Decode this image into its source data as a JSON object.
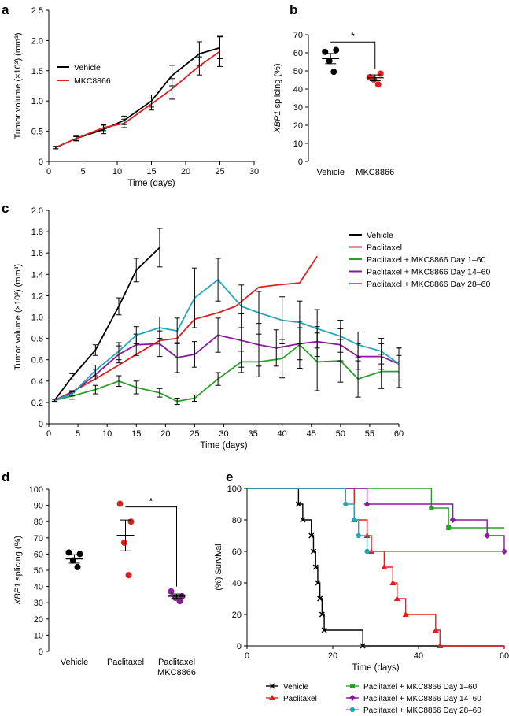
{
  "figure": {
    "panel_letters": [
      "a",
      "b",
      "c",
      "d",
      "e"
    ]
  },
  "chart_data": [
    {
      "panel": "a",
      "type": "line",
      "xlabel": "Time (days)",
      "ylabel": "Tumor volume (×10³) (mm³)",
      "xlim": [
        0,
        30
      ],
      "ylim": [
        0,
        2.5
      ],
      "xticks": [
        "0",
        "5",
        "10",
        "15",
        "20",
        "25",
        "30"
      ],
      "yticks": [
        "0",
        "0.5",
        "1.0",
        "1.5",
        "2.0",
        "2.5"
      ],
      "legend": [
        "Vehicle",
        "MKC8866"
      ],
      "series": [
        {
          "name": "Vehicle",
          "color": "#000000",
          "x": [
            1,
            4,
            8,
            11,
            15,
            18,
            22,
            25
          ],
          "y": [
            0.23,
            0.38,
            0.53,
            0.68,
            1.0,
            1.42,
            1.78,
            1.88
          ],
          "err": [
            0.02,
            0.04,
            0.07,
            0.07,
            0.1,
            0.17,
            0.2,
            0.18
          ]
        },
        {
          "name": "MKC8866",
          "color": "#e02020",
          "x": [
            1,
            4,
            8,
            11,
            15,
            18,
            22,
            25
          ],
          "y": [
            0.23,
            0.38,
            0.56,
            0.63,
            0.95,
            1.2,
            1.58,
            1.82
          ],
          "err": [
            0.02,
            0.03,
            0.05,
            0.07,
            0.1,
            0.17,
            0.15,
            0.25
          ]
        }
      ]
    },
    {
      "panel": "b",
      "type": "scatter",
      "ylabel": "XBP1 splicing (%)",
      "ylim": [
        0,
        70
      ],
      "yticks": [
        "0",
        "10",
        "20",
        "30",
        "40",
        "50",
        "60",
        "70"
      ],
      "categories": [
        "Vehicle",
        "MKC8866"
      ],
      "significance": "*",
      "groups": [
        {
          "name": "Vehicle",
          "color": "#000000",
          "points": [
            60.5,
            61.5,
            55.5,
            49.5
          ],
          "mean": 56.8,
          "sem": 2.8
        },
        {
          "name": "MKC8866",
          "color": "#e02020",
          "points": [
            46.5,
            48.5,
            45.2,
            42.5
          ],
          "mean": 46.2,
          "sem": 1.6
        }
      ]
    },
    {
      "panel": "c",
      "type": "line",
      "xlabel": "Time (days)",
      "ylabel": "Tumor volume (×10³) (mm³)",
      "xlim": [
        0,
        60
      ],
      "ylim": [
        0,
        2.0
      ],
      "xticks": [
        "0",
        "5",
        "10",
        "15",
        "20",
        "25",
        "30",
        "35",
        "40",
        "45",
        "50",
        "55",
        "60"
      ],
      "yticks": [
        "0",
        "0.2",
        "0.4",
        "0.6",
        "0.8",
        "1.0",
        "1.2",
        "1.4",
        "1.6",
        "1.8",
        "2.0"
      ],
      "legend": [
        "Vehicle",
        "Paclitaxel",
        "Paclitaxel + MKC8866 Day 1–60",
        "Paclitaxel + MKC8866 Day 14–60",
        "Paclitaxel + MKC8866 Day 28–60"
      ],
      "series": [
        {
          "name": "Vehicle",
          "color": "#000000",
          "x": [
            1,
            4,
            8,
            12,
            15,
            19
          ],
          "y": [
            0.22,
            0.44,
            0.69,
            1.1,
            1.44,
            1.65
          ],
          "err": [
            0.01,
            0.03,
            0.05,
            0.08,
            0.11,
            0.18
          ]
        },
        {
          "name": "Paclitaxel",
          "color": "#e02020",
          "x": [
            1,
            4,
            8,
            12,
            15,
            19,
            22,
            25,
            29,
            32,
            36,
            39,
            43,
            46
          ],
          "y": [
            0.22,
            0.3,
            0.42,
            0.55,
            0.65,
            0.78,
            0.8,
            0.98,
            1.04,
            1.1,
            1.28,
            1.3,
            1.32,
            1.57
          ],
          "err": [
            0,
            0,
            0,
            0,
            0,
            0,
            0,
            0,
            0,
            0,
            0,
            0,
            0,
            0
          ]
        },
        {
          "name": "Paclitaxel + MKC8866 Day 1–60",
          "color": "#2aa02a",
          "x": [
            1,
            4,
            8,
            12,
            15,
            19,
            22,
            25,
            29,
            33,
            36,
            40,
            43,
            46,
            50,
            53,
            57,
            60
          ],
          "y": [
            0.22,
            0.26,
            0.32,
            0.4,
            0.34,
            0.29,
            0.21,
            0.24,
            0.42,
            0.58,
            0.58,
            0.61,
            0.74,
            0.58,
            0.59,
            0.42,
            0.49,
            0.49
          ],
          "err": [
            0.01,
            0.03,
            0.04,
            0.05,
            0.06,
            0.04,
            0.03,
            0.03,
            0.06,
            0.1,
            0.14,
            0.18,
            0.22,
            0.27,
            0.2,
            0.17,
            0.16,
            0.15
          ]
        },
        {
          "name": "Paclitaxel + MKC8866 Day 14–60",
          "color": "#8b1a9b",
          "x": [
            1,
            4,
            8,
            12,
            15,
            19,
            22,
            25,
            29,
            33,
            36,
            39,
            43,
            46,
            50,
            53,
            57,
            60
          ],
          "y": [
            0.22,
            0.29,
            0.46,
            0.65,
            0.74,
            0.75,
            0.62,
            0.65,
            0.83,
            0.78,
            0.74,
            0.71,
            0.75,
            0.77,
            0.74,
            0.63,
            0.63,
            0.56
          ],
          "err": [
            0.01,
            0.02,
            0.05,
            0.08,
            0.1,
            0.12,
            0.14,
            0.12,
            0.16,
            0.25,
            0.2,
            0.17,
            0.15,
            0.14,
            0.15,
            0.12,
            0.12,
            0.15
          ]
        },
        {
          "name": "Paclitaxel + MKC8866 Day 28–60",
          "color": "#22a8b8",
          "x": [
            1,
            4,
            8,
            12,
            15,
            19,
            22,
            25,
            29,
            33,
            36,
            40,
            43,
            46,
            50,
            53,
            57,
            60
          ],
          "y": [
            0.22,
            0.28,
            0.5,
            0.68,
            0.83,
            0.9,
            0.87,
            1.18,
            1.35,
            1.1,
            1.04,
            0.97,
            0.95,
            0.89,
            0.82,
            0.74,
            0.68,
            0.56
          ],
          "err": [
            0.01,
            0.02,
            0.05,
            0.08,
            0.08,
            0.1,
            0.12,
            0.28,
            0.2,
            0.2,
            0.2,
            0.22,
            0.2,
            0.18,
            0.15,
            0.12,
            0.12,
            0.15
          ]
        }
      ]
    },
    {
      "panel": "d",
      "type": "scatter",
      "ylabel": "XBP1 splicing (%)",
      "ylim": [
        0,
        100
      ],
      "yticks": [
        "0",
        "10",
        "20",
        "30",
        "40",
        "50",
        "60",
        "70",
        "80",
        "90",
        "100"
      ],
      "categories": [
        "Vehicle",
        "Paclitaxel",
        "Paclitaxel\nMKC8866"
      ],
      "significance": "*",
      "groups": [
        {
          "name": "Vehicle",
          "color": "#000000",
          "points": [
            61,
            60,
            56,
            52
          ],
          "mean": 57,
          "sem": 2.6
        },
        {
          "name": "Paclitaxel",
          "color": "#e02020",
          "points": [
            91,
            80,
            67,
            47
          ],
          "mean": 71.5,
          "sem": 9.5
        },
        {
          "name": "Paclitaxel MKC8866",
          "color": "#8b1a9b",
          "points": [
            37,
            34,
            33,
            31
          ],
          "mean": 34,
          "sem": 1.4
        }
      ]
    },
    {
      "panel": "e",
      "type": "survival",
      "xlabel": "Time (days)",
      "ylabel": "(%) Survival",
      "xlim": [
        0,
        60
      ],
      "ylim": [
        0,
        100
      ],
      "xticks": [
        "0",
        "20",
        "40",
        "60"
      ],
      "yticks": [
        "0",
        "20",
        "40",
        "60",
        "80",
        "100"
      ],
      "series": [
        {
          "name": "Vehicle",
          "color": "#000000",
          "marker": "x",
          "times": [
            12,
            13,
            15,
            15.5,
            16,
            16.5,
            17,
            17.5,
            18,
            27
          ],
          "survival": [
            90,
            80,
            70,
            60,
            50,
            40,
            30,
            20,
            10,
            0
          ]
        },
        {
          "name": "Paclitaxel",
          "color": "#e02020",
          "marker": "triangle",
          "times": [
            25,
            28,
            29,
            32,
            34,
            35,
            37,
            44,
            45
          ],
          "survival": [
            80,
            70,
            60,
            50,
            40,
            30,
            20,
            10,
            0
          ]
        },
        {
          "name": "Paclitaxel + MKC8866 Day 1–60",
          "color": "#2aa02a",
          "marker": "square",
          "times": [
            43,
            47
          ],
          "survival": [
            87.5,
            75
          ]
        },
        {
          "name": "Paclitaxel + MKC8866 Day 14–60",
          "color": "#8b1a9b",
          "marker": "diamond",
          "times": [
            28,
            48,
            56,
            60
          ],
          "survival": [
            90,
            80,
            70,
            60
          ]
        },
        {
          "name": "Paclitaxel + MKC8866 Day 28–60",
          "color": "#22a8b8",
          "marker": "circle",
          "times": [
            23,
            25,
            26,
            28
          ],
          "survival": [
            90,
            80,
            70,
            60
          ]
        }
      ]
    }
  ]
}
